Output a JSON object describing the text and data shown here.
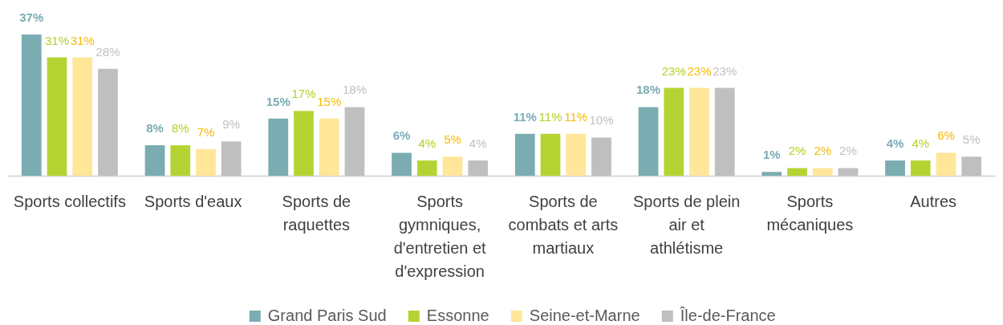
{
  "chart_data": {
    "type": "bar",
    "categories": [
      "Sports collectifs",
      "Sports d'eaux",
      "Sports de raquettes",
      "Sports gymniques, d'entretien et d'expression",
      "Sports de combats et arts martiaux",
      "Sports de plein air et athlétisme",
      "Sports mécaniques",
      "Autres"
    ],
    "series": [
      {
        "name": "Grand Paris Sud",
        "color": "#7aacb2",
        "values": [
          37,
          8,
          15,
          6,
          11,
          18,
          1,
          4
        ],
        "value_labels": [
          "37%",
          "8%",
          "15%",
          "6%",
          "11%",
          "18%",
          "1%",
          "4%"
        ]
      },
      {
        "name": "Essonne",
        "color": "#b5d433",
        "values": [
          31,
          8,
          17,
          4,
          11,
          23,
          2,
          4
        ],
        "value_labels": [
          "31%",
          "8%",
          "17%",
          "4%",
          "11%",
          "23%",
          "2%",
          "4%"
        ]
      },
      {
        "name": "Seine-et-Marne",
        "color": "#ffe699",
        "values": [
          31,
          7,
          15,
          5,
          11,
          23,
          2,
          6
        ],
        "value_labels": [
          "31%",
          "7%",
          "15%",
          "5%",
          "11%",
          "23%",
          "2%",
          "6%"
        ]
      },
      {
        "name": "Île-de-France",
        "color": "#bfbfbf",
        "values": [
          28,
          9,
          18,
          4,
          10,
          23,
          2,
          5
        ],
        "value_labels": [
          "28%",
          "9%",
          "18%",
          "4%",
          "10%",
          "23%",
          "2%",
          "5%"
        ]
      }
    ],
    "legend": "bottom"
  }
}
